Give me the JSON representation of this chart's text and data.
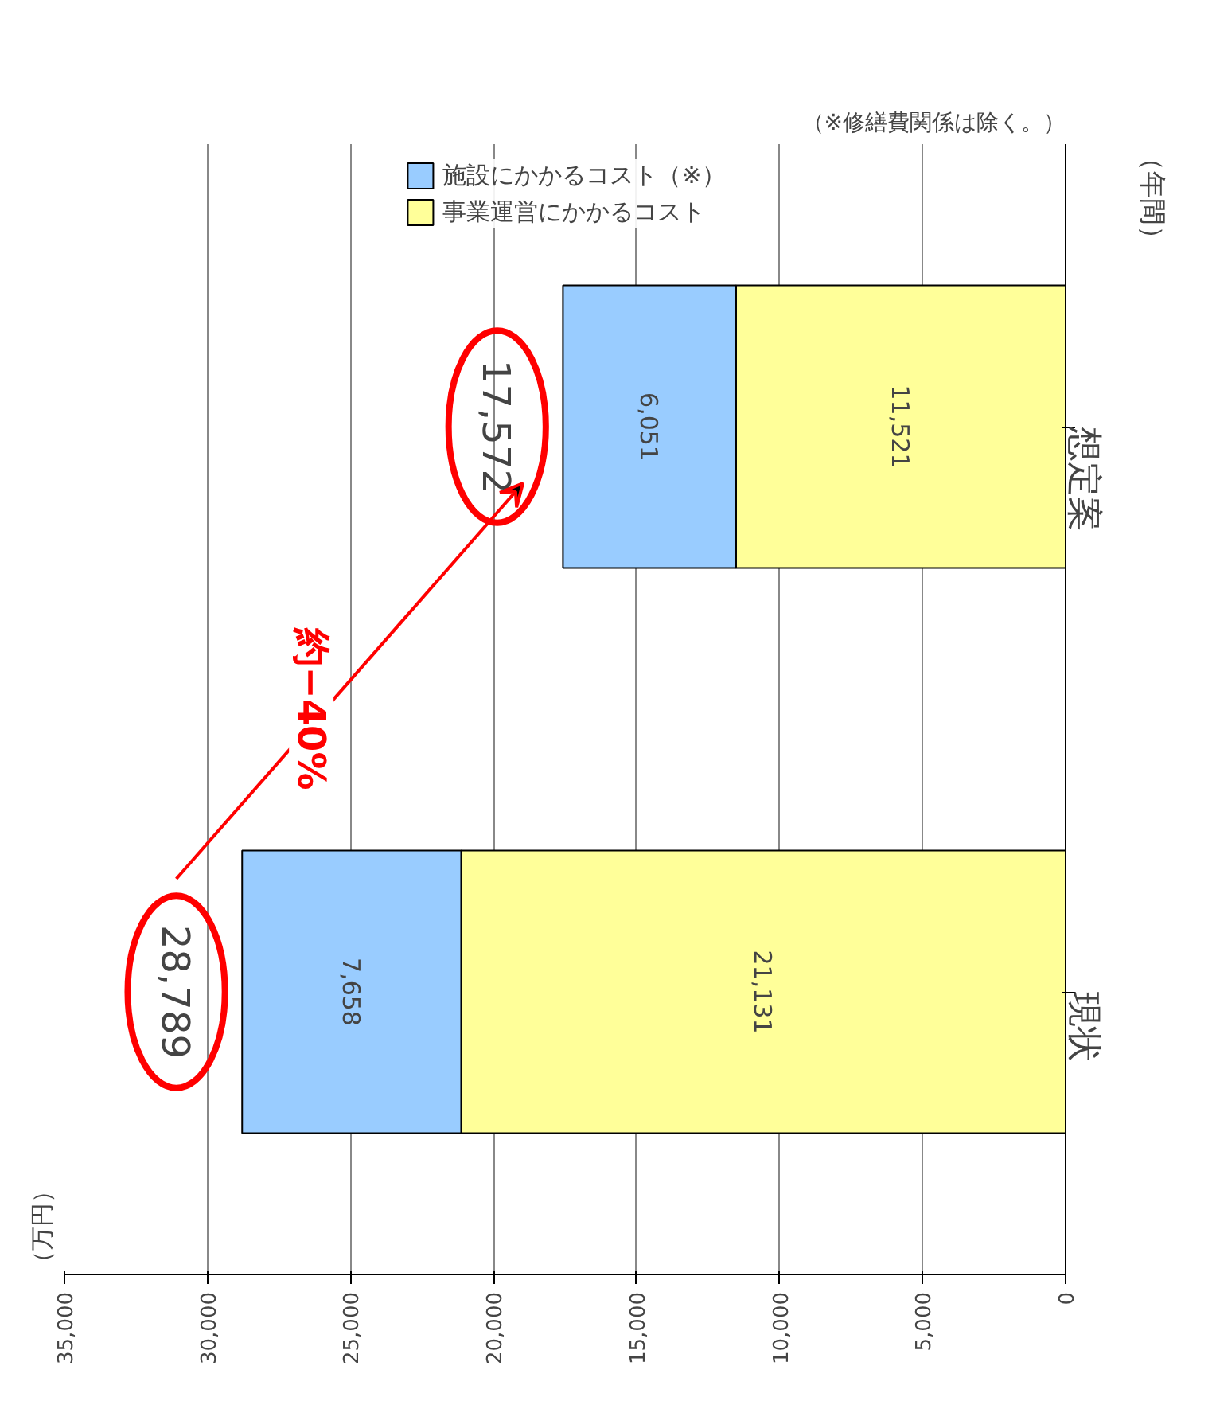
{
  "chart_data": {
    "type": "bar",
    "orientation": "horizontal",
    "stacked": true,
    "title": "（※修繕費関係は除く。）",
    "categories": [
      "想定案",
      "現状"
    ],
    "series": [
      {
        "name": "事業運営にかかるコスト",
        "color": "#ffff99",
        "values": [
          11521,
          21131
        ],
        "value_labels": [
          "11,521",
          "21,131"
        ]
      },
      {
        "name": "施設にかかるコスト（※）",
        "color": "#99ccff",
        "values": [
          6051,
          7658
        ],
        "value_labels": [
          "6,051",
          "7,658"
        ]
      }
    ],
    "xlim": [
      35000,
      0
    ],
    "xticks": [
      {
        "value": 35000,
        "label": "35,000"
      },
      {
        "value": 30000,
        "label": "30,000"
      },
      {
        "value": 25000,
        "label": "25,000"
      },
      {
        "value": 20000,
        "label": "20,000"
      },
      {
        "value": 15000,
        "label": "15,000"
      },
      {
        "value": 10000,
        "label": "10,000"
      },
      {
        "value": 5000,
        "label": "5,000"
      },
      0
    ],
    "totals": [
      "17,572",
      "28,789"
    ],
    "grid": "x",
    "legend": "top",
    "annotations": [
      "（年間）",
      "約−40%",
      "（万円）"
    ]
  }
}
